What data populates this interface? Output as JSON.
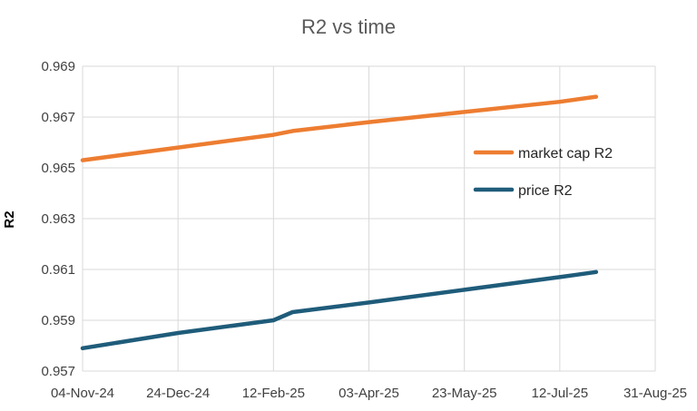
{
  "chart_data": {
    "type": "line",
    "title": "R2 vs time",
    "xlabel": "",
    "ylabel": "R2",
    "xlim": [
      "2024-11-04",
      "2025-08-31"
    ],
    "ylim": [
      0.957,
      0.969
    ],
    "x_ticks": [
      "04-Nov-24",
      "24-Dec-24",
      "12-Feb-25",
      "03-Apr-25",
      "23-May-25",
      "12-Jul-25",
      "31-Aug-25"
    ],
    "x_tick_dates": [
      "2024-11-04",
      "2024-12-24",
      "2025-02-12",
      "2025-04-03",
      "2025-05-23",
      "2025-07-12",
      "2025-08-31"
    ],
    "y_ticks": [
      "0.957",
      "0.959",
      "0.961",
      "0.963",
      "0.965",
      "0.967",
      "0.969"
    ],
    "y_tick_values": [
      0.957,
      0.959,
      0.961,
      0.963,
      0.965,
      0.967,
      0.969
    ],
    "grid": true,
    "legend_position": "right",
    "series": [
      {
        "name": "market cap R2",
        "color": "#ED7D31",
        "points": [
          [
            "2024-11-04",
            0.9653
          ],
          [
            "2024-12-24",
            0.9658
          ],
          [
            "2025-02-12",
            0.9663
          ],
          [
            "2025-02-22",
            0.96645
          ],
          [
            "2025-04-03",
            0.9668
          ],
          [
            "2025-05-23",
            0.9672
          ],
          [
            "2025-07-12",
            0.9676
          ],
          [
            "2025-07-31",
            0.9678
          ]
        ]
      },
      {
        "name": "price R2",
        "color": "#1F5C7A",
        "points": [
          [
            "2024-11-04",
            0.9579
          ],
          [
            "2024-12-24",
            0.9585
          ],
          [
            "2025-02-12",
            0.959
          ],
          [
            "2025-02-22",
            0.95932
          ],
          [
            "2025-04-03",
            0.9597
          ],
          [
            "2025-05-23",
            0.9602
          ],
          [
            "2025-07-12",
            0.9607
          ],
          [
            "2025-07-31",
            0.9609
          ]
        ]
      }
    ]
  }
}
